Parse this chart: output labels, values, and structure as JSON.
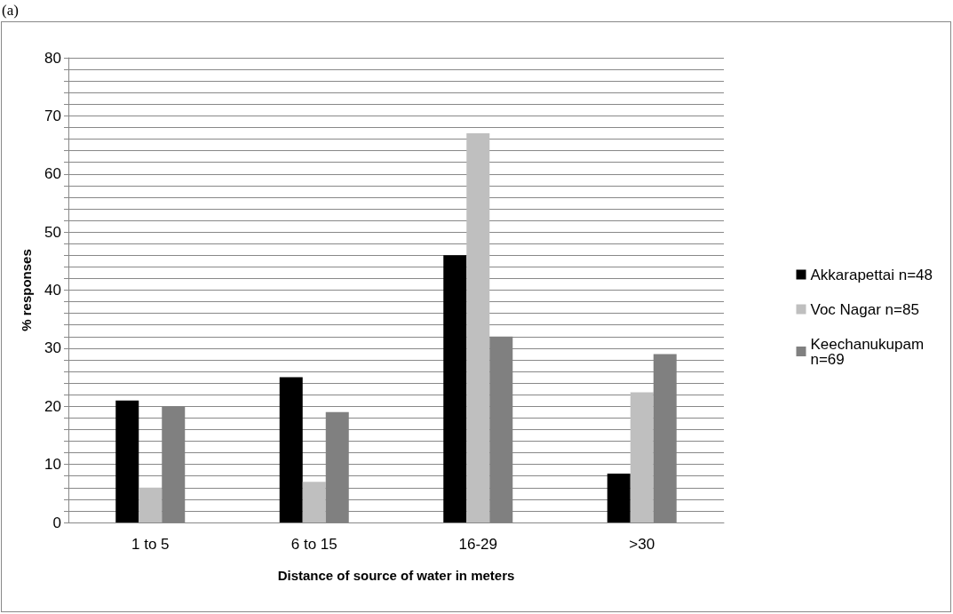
{
  "chart_data": {
    "type": "bar",
    "title": "(a)",
    "xlabel": "Distance of source of water in meters",
    "ylabel": "% responses",
    "categories": [
      "1 to 5",
      "6 to 15",
      "16-29",
      ">30"
    ],
    "series": [
      {
        "name": "Akkarapettai n=48",
        "color": "#000000",
        "values": [
          21,
          25,
          46,
          8.4
        ]
      },
      {
        "name": "Voc Nagar n=85",
        "color": "#bfbfbf",
        "values": [
          6,
          7,
          67,
          22.4
        ]
      },
      {
        "name": "Keechanukupam n=69",
        "color": "#808080",
        "values": [
          20,
          19,
          32,
          29
        ]
      }
    ],
    "ylim": [
      0,
      80
    ],
    "yticks": [
      0,
      {
        "value": 2,
        "label": null
      },
      {
        "value": 4,
        "label": null
      },
      {
        "value": 6,
        "label": null
      },
      {
        "value": 8,
        "label": null
      },
      10,
      {
        "value": 12,
        "label": null
      },
      {
        "value": 14,
        "label": null
      },
      {
        "value": 16,
        "label": null
      },
      {
        "value": 18,
        "label": null
      },
      20,
      {
        "value": 22,
        "label": null
      },
      {
        "value": 24,
        "label": null
      },
      {
        "value": 26,
        "label": null
      },
      {
        "value": 28,
        "label": null
      },
      30,
      {
        "value": 32,
        "label": null
      },
      {
        "value": 34,
        "label": null
      },
      {
        "value": 36,
        "label": null
      },
      {
        "value": 38,
        "label": null
      },
      40,
      {
        "value": 42,
        "label": null
      },
      {
        "value": 44,
        "label": null
      },
      {
        "value": 46,
        "label": null
      },
      {
        "value": 48,
        "label": null
      },
      50,
      {
        "value": 52,
        "label": null
      },
      {
        "value": 54,
        "label": null
      },
      {
        "value": 56,
        "label": null
      },
      {
        "value": 58,
        "label": null
      },
      60,
      {
        "value": 62,
        "label": null
      },
      {
        "value": 64,
        "label": null
      },
      {
        "value": 66,
        "label": null
      },
      {
        "value": 68,
        "label": null
      },
      70,
      {
        "value": 72,
        "label": null
      },
      {
        "value": 74,
        "label": null
      },
      {
        "value": 76,
        "label": null
      },
      {
        "value": 78,
        "label": null
      },
      80
    ],
    "grid": "y",
    "legend": "right"
  }
}
